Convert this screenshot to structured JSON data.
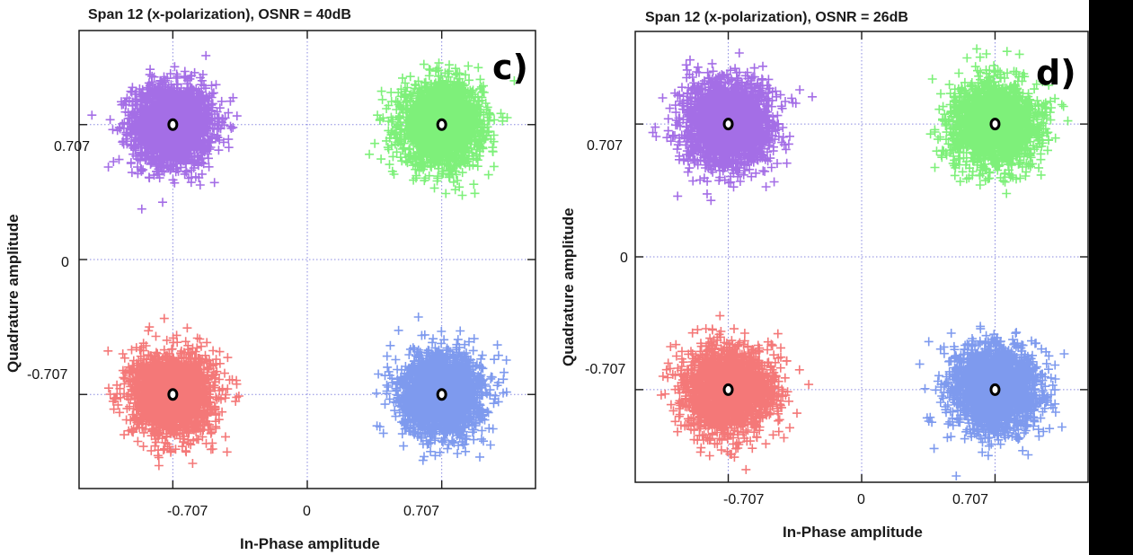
{
  "chart_data": [
    {
      "type": "scatter",
      "panel_label": "c)",
      "title": "Span 12 (x-polarization), OSNR = 40dB",
      "xlabel": "In-Phase amplitude",
      "ylabel": "Quadrature amplitude",
      "xlim": [
        -1.2,
        1.2
      ],
      "ylim": [
        -1.2,
        1.2
      ],
      "xticks": [
        "-0.707",
        "0",
        "0.707"
      ],
      "yticks": [
        "0.707",
        "0",
        "-0.707"
      ],
      "grid": true,
      "series": [
        {
          "color": "#a46ee6",
          "center": [
            -0.707,
            0.707
          ],
          "spread": 0.17
        },
        {
          "color": "#7ef07a",
          "center": [
            0.707,
            0.707
          ],
          "spread": 0.17
        },
        {
          "color": "#f47878",
          "center": [
            -0.707,
            -0.707
          ],
          "spread": 0.17
        },
        {
          "color": "#7e9aee",
          "center": [
            0.707,
            -0.707
          ],
          "spread": 0.17
        }
      ],
      "ideal_points": [
        [
          -0.707,
          0.707
        ],
        [
          0.707,
          0.707
        ],
        [
          -0.707,
          -0.707
        ],
        [
          0.707,
          -0.707
        ]
      ]
    },
    {
      "type": "scatter",
      "panel_label": "d)",
      "title": "Span 12 (x-polarization), OSNR = 26dB",
      "xlabel": "In-Phase amplitude",
      "ylabel": "Quadrature amplitude",
      "xlim": [
        -1.2,
        1.2
      ],
      "ylim": [
        -1.2,
        1.2
      ],
      "xticks": [
        "-0.707",
        "0",
        "0.707"
      ],
      "yticks": [
        "0.707",
        "0",
        "-0.707"
      ],
      "grid": true,
      "series": [
        {
          "color": "#a46ee6",
          "center": [
            -0.707,
            0.707
          ],
          "spread": 0.18
        },
        {
          "color": "#7ef07a",
          "center": [
            0.707,
            0.707
          ],
          "spread": 0.18
        },
        {
          "color": "#f47878",
          "center": [
            -0.707,
            -0.707
          ],
          "spread": 0.18
        },
        {
          "color": "#7e9aee",
          "center": [
            0.707,
            -0.707
          ],
          "spread": 0.18
        }
      ],
      "ideal_points": [
        [
          -0.707,
          0.707
        ],
        [
          0.707,
          0.707
        ],
        [
          -0.707,
          -0.707
        ],
        [
          0.707,
          -0.707
        ]
      ]
    }
  ]
}
